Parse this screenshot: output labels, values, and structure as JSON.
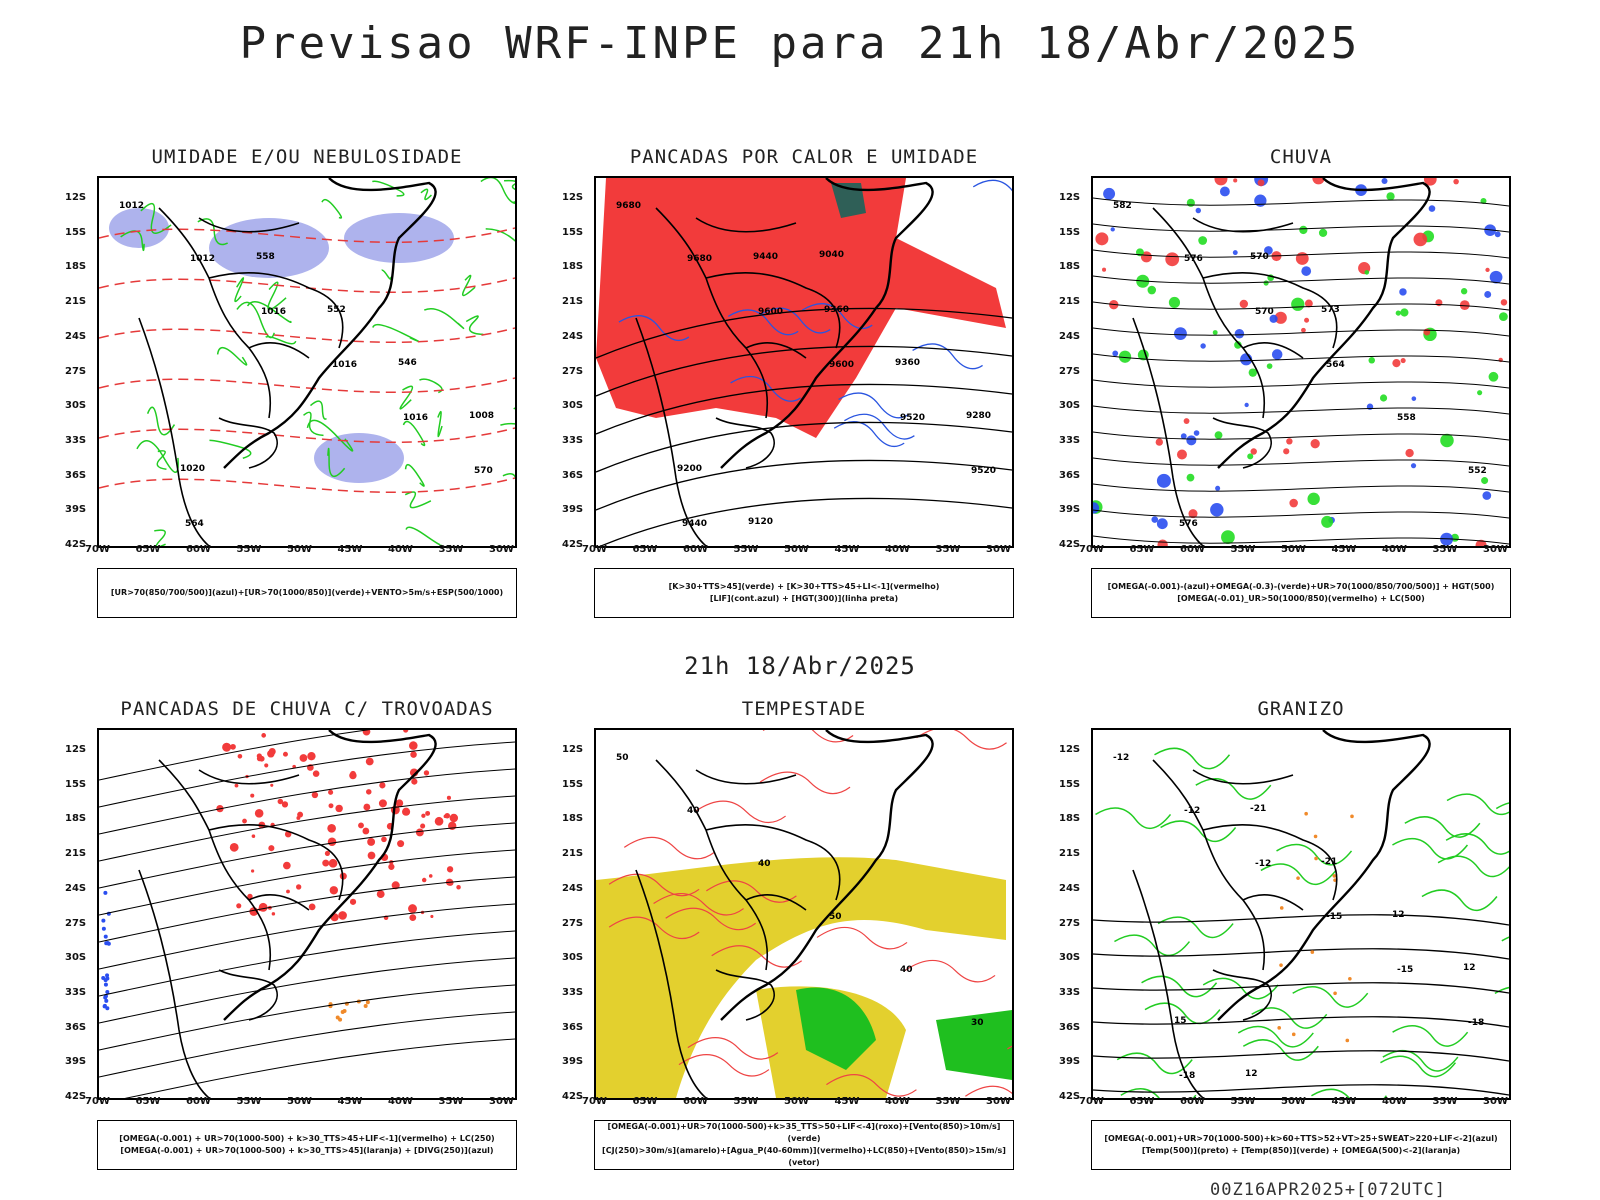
{
  "title": "Previsao WRF-INPE  para 21h 18/Abr/2025",
  "mid_title": "21h 18/Abr/2025",
  "footer": "00Z16APR2025+[072UTC]",
  "axes": {
    "lat_labels": [
      "12S",
      "15S",
      "18S",
      "21S",
      "24S",
      "27S",
      "30S",
      "33S",
      "36S",
      "39S",
      "42S"
    ],
    "lon_labels": [
      "70W",
      "65W",
      "60W",
      "55W",
      "50W",
      "45W",
      "40W",
      "35W",
      "30W"
    ]
  },
  "panels": [
    {
      "id": "umidade",
      "title": "UMIDADE E/OU NEBULOSIDADE",
      "legend": [
        "[UR>70(850/700/500)](azul)+[UR>70(1000/850)](verde)+VENTO>5m/s+ESP(500/1000)"
      ],
      "contour_labels": [
        "1012",
        "1012",
        "1016",
        "1016",
        "1016",
        "570",
        "564",
        "558",
        "552",
        "546",
        "1008",
        "1020"
      ],
      "colors": {
        "fill_blue": "#9aa0e8",
        "line_green": "#22cc22",
        "line_red": "#e53a3a",
        "line_black": "#000000"
      }
    },
    {
      "id": "pancadas-calor",
      "title": "PANCADAS POR CALOR E UMIDADE",
      "legend": [
        "[K>30+TTS>45](verde) + [K>30+TTS>45+LI<-1](vermelho)",
        "[LIF](cont.azul) + [HGT(300)](linha preta)"
      ],
      "contour_labels": [
        "9680",
        "9680",
        "9600",
        "9600",
        "9520",
        "9520",
        "9440",
        "9440",
        "9360",
        "9360",
        "9280",
        "9200",
        "9120",
        "9040"
      ],
      "colors": {
        "fill_red": "#f23b3b",
        "fill_teal": "#2f5f57",
        "line_blue": "#2a55e0",
        "line_black": "#000000"
      }
    },
    {
      "id": "chuva",
      "title": "CHUVA",
      "legend": [
        "[OMEGA(-0.001)-(azul)+OMEGA(-0.3)-(verde)+UR>70(1000/850/700/500)] + HGT(500)",
        "[OMEGA(-0.01)_UR>50(1000/850)(vermelho) + LC(500)"
      ],
      "contour_labels": [
        "582",
        "576",
        "570",
        "564",
        "558",
        "552",
        "576",
        "570",
        "573"
      ],
      "colors": {
        "fill_red": "#f23b3b",
        "fill_blue": "#2a4ef0",
        "fill_green": "#22dd22",
        "line_black": "#000000"
      }
    },
    {
      "id": "pancadas-trovoadas",
      "title": "PANCADAS DE CHUVA C/ TROVOADAS",
      "legend": [
        "[OMEGA(-0.001) + UR>70(1000-500) + k>30_TTS>45+LIF<-1](vermelho) + LC(250)",
        "[OMEGA(-0.001) + UR>70(1000-500) + k>30_TTS>45](laranja) + [DIVG(250)](azul)"
      ],
      "contour_labels": [],
      "colors": {
        "fill_red": "#f23b3b",
        "fill_orange": "#f08a2a",
        "fill_blue": "#2a4ef0",
        "line_black": "#000000"
      }
    },
    {
      "id": "tempestade",
      "title": "TEMPESTADE",
      "legend": [
        "[OMEGA(-0.001)+UR>70(1000-500)+k>35_TTS>50+LIF<-4](roxo)+[Vento(850)>10m/s](verde)",
        "[CJ(250)>30m/s](amarelo)+[Agua_P(40-60mm)](vermelho)+LC(850)+[Vento(850)>15m/s](vetor)"
      ],
      "contour_labels": [
        "50",
        "40",
        "40",
        "50",
        "40",
        "30"
      ],
      "colors": {
        "fill_yellow": "#e3d02e",
        "fill_green": "#1fbf1f",
        "line_red": "#ee4444",
        "line_black": "#000000"
      }
    },
    {
      "id": "granizo",
      "title": "GRANIZO",
      "legend": [
        "[OMEGA(-0.001)+UR>70(1000-500)+k>60+TTS>52+VT>25+SWEAT>220+LIF<-2](azul)",
        "[Temp(500)](preto) + [Temp(850)](verde) + [OMEGA(500)<-2](laranja)"
      ],
      "contour_labels": [
        "-12",
        "-12",
        "-12",
        "-15",
        "-15",
        "-18",
        "-18",
        "-21",
        "-21",
        "12",
        "12",
        "15",
        "12"
      ],
      "colors": {
        "line_green": "#22cc22",
        "line_black": "#000000",
        "fill_orange": "#f08a2a"
      }
    }
  ]
}
